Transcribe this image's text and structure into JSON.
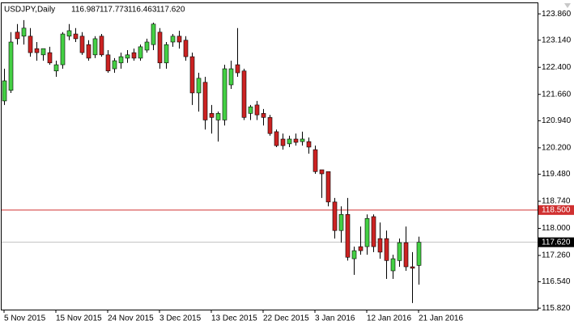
{
  "chart_data": {
    "type": "candlestick",
    "header": "USDJPY,Daily",
    "header_prices": [
      "116.987",
      "117.773",
      "116.463",
      "117.620"
    ],
    "categories": [
      "5 Nov 2015",
      null,
      null,
      null,
      null,
      null,
      null,
      null,
      "15 Nov 2015",
      null,
      null,
      null,
      null,
      null,
      null,
      null,
      "24 Nov 2015",
      null,
      null,
      null,
      null,
      null,
      null,
      null,
      "3 Dec 2015",
      null,
      null,
      null,
      null,
      null,
      null,
      null,
      "13 Dec 2015",
      null,
      null,
      null,
      null,
      null,
      null,
      null,
      "22 Dec 2015",
      null,
      null,
      null,
      null,
      null,
      null,
      null,
      "3 Jan 2016",
      null,
      null,
      null,
      null,
      null,
      null,
      null,
      "12 Jan 2016",
      null,
      null,
      null,
      null,
      null,
      null,
      null,
      "21 Jan 2016"
    ],
    "series": [
      {
        "name": "USDJPY",
        "bull_color": "#44d044",
        "bear_color": "#cc2222",
        "open": [
          121.48,
          121.77,
          123.36,
          123.25,
          123.25,
          122.91,
          122.74,
          122.8,
          122.3,
          122.47,
          123.25,
          123.31,
          123.25,
          123.02,
          122.74,
          123.25,
          122.74,
          122.36,
          122.52,
          122.65,
          122.8,
          122.65,
          122.87,
          123.02,
          123.36,
          122.52,
          123.09,
          123.25,
          123.14,
          122.69,
          121.7,
          121.99,
          121.14,
          120.96,
          120.96,
          121.92,
          122.47,
          122.3,
          121.14,
          121.37,
          121.14,
          121.03,
          120.64,
          120.44,
          120.31,
          120.44,
          120.37,
          120.37,
          120.15,
          119.6,
          119.55,
          118.72,
          117.94,
          118.38,
          117.17,
          117.5,
          117.5,
          118.32,
          117.72,
          117.72,
          116.84,
          117.12,
          117.61,
          116.95,
          116.987
        ],
        "high": [
          122.36,
          123.36,
          123.58,
          123.69,
          123.47,
          123.09,
          122.91,
          122.96,
          122.58,
          123.36,
          123.58,
          123.47,
          123.36,
          123.14,
          123.25,
          123.31,
          122.87,
          122.65,
          122.8,
          122.87,
          122.91,
          123.02,
          123.18,
          123.62,
          123.47,
          123.09,
          123.31,
          123.4,
          123.25,
          122.8,
          122.25,
          122.14,
          121.37,
          121.19,
          122.47,
          122.58,
          123.47,
          122.36,
          121.37,
          121.48,
          121.26,
          121.1,
          120.7,
          120.59,
          120.53,
          120.59,
          120.64,
          120.48,
          120.26,
          119.6,
          119.55,
          118.83,
          118.6,
          118.83,
          117.5,
          118.05,
          118.38,
          118.38,
          118.16,
          117.94,
          117.28,
          117.72,
          118.05,
          117.35,
          117.773
        ],
        "low": [
          121.37,
          121.7,
          123.02,
          123.02,
          122.69,
          122.58,
          122.58,
          122.47,
          122.14,
          122.36,
          123.14,
          123.09,
          122.74,
          122.58,
          122.65,
          122.69,
          122.25,
          122.25,
          122.36,
          122.52,
          122.58,
          122.58,
          122.8,
          122.87,
          122.36,
          122.36,
          122.96,
          122.91,
          122.58,
          121.37,
          121.19,
          120.7,
          120.59,
          120.37,
          120.81,
          121.81,
          122.14,
          120.96,
          120.96,
          120.96,
          120.81,
          120.53,
          120.22,
          120.15,
          120.22,
          120.26,
          120.26,
          120.04,
          119.49,
          118.83,
          118.6,
          117.72,
          117.61,
          117.12,
          116.73,
          117.28,
          117.28,
          117.35,
          117.17,
          116.62,
          116.62,
          116.95,
          116.84,
          115.96,
          116.463
        ],
        "close": [
          122.03,
          123.09,
          123.18,
          123.47,
          122.8,
          122.8,
          122.91,
          122.52,
          122.47,
          123.31,
          123.4,
          123.18,
          122.8,
          122.65,
          123.18,
          122.74,
          122.3,
          122.58,
          122.69,
          122.74,
          122.65,
          122.96,
          123.09,
          123.58,
          122.52,
          123.02,
          123.25,
          123.09,
          122.69,
          121.7,
          122.1,
          120.96,
          121.03,
          121.14,
          122.36,
          122.36,
          122.25,
          121.03,
          121.32,
          121.1,
          121.03,
          120.59,
          120.26,
          120.26,
          120.44,
          120.35,
          120.44,
          120.22,
          119.55,
          119.49,
          118.72,
          117.94,
          118.38,
          117.21,
          117.39,
          117.39,
          118.27,
          117.5,
          117.35,
          117.12,
          117.17,
          117.61,
          116.95,
          116.91,
          117.62
        ]
      }
    ],
    "hlines": [
      {
        "value": 118.5,
        "label": "118.500",
        "color": "#d03030"
      },
      {
        "value": 117.62,
        "label": "117.620",
        "color": "#c0c0c0"
      }
    ],
    "ylim": [
      115.78,
      124.15
    ],
    "yticks": [
      {
        "value": 123.86,
        "label": "123.860"
      },
      {
        "value": 123.14,
        "label": "123.140"
      },
      {
        "value": 122.4,
        "label": "122.400"
      },
      {
        "value": 121.66,
        "label": "121.660"
      },
      {
        "value": 120.94,
        "label": "120.940"
      },
      {
        "value": 120.2,
        "label": "120.200"
      },
      {
        "value": 119.48,
        "label": "119.480"
      },
      {
        "value": 118.74,
        "label": "118.740"
      },
      {
        "value": 118,
        "label": "118.000"
      },
      {
        "value": 117.26,
        "label": "117.260"
      },
      {
        "value": 116.54,
        "label": "116.540"
      },
      {
        "value": 115.82,
        "label": "115.820"
      }
    ]
  }
}
